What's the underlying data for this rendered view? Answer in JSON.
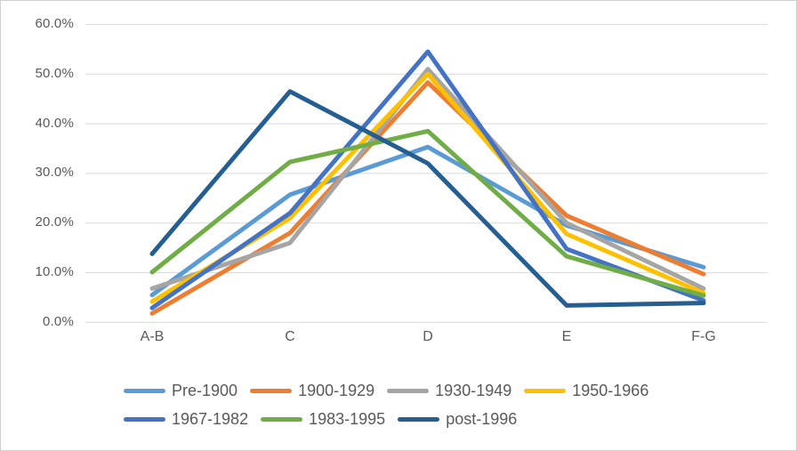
{
  "chart_data": {
    "type": "line",
    "title": "",
    "xlabel": "",
    "ylabel": "",
    "categories": [
      "A-B",
      "C",
      "D",
      "E",
      "F-G"
    ],
    "y_ticks": [
      "60.0%",
      "50.0%",
      "40.0%",
      "30.0%",
      "20.0%",
      "10.0%",
      "0.0%"
    ],
    "ylim": [
      0,
      60
    ],
    "y_step": 10,
    "y_unit": "percent",
    "grid": true,
    "legend_position": "bottom-left",
    "series": [
      {
        "name": "Pre-1900",
        "color": "#5B9BD5",
        "values": [
          5.5,
          25.7,
          35.3,
          19.5,
          11.1
        ]
      },
      {
        "name": "1900-1929",
        "color": "#ED7D31",
        "values": [
          1.8,
          18.0,
          48.3,
          21.5,
          9.7
        ]
      },
      {
        "name": "1930-1949",
        "color": "#A5A5A5",
        "values": [
          6.8,
          16.0,
          51.0,
          20.0,
          6.8
        ]
      },
      {
        "name": "1950-1966",
        "color": "#FFC000",
        "values": [
          4.2,
          21.0,
          50.0,
          17.8,
          5.9
        ]
      },
      {
        "name": "1967-1982",
        "color": "#4472C4",
        "values": [
          2.9,
          22.0,
          54.5,
          14.8,
          4.4
        ]
      },
      {
        "name": "1983-1995",
        "color": "#70AD47",
        "values": [
          10.1,
          32.3,
          38.5,
          13.3,
          5.4
        ]
      },
      {
        "name": "post-1996",
        "color": "#255E91",
        "values": [
          13.8,
          46.5,
          32.0,
          3.4,
          3.9
        ]
      }
    ]
  },
  "colors": {
    "axis_text": "#595959",
    "gridline": "#D9D9D9",
    "frame_border": "#CFCFCF",
    "background": "#FFFFFF"
  }
}
